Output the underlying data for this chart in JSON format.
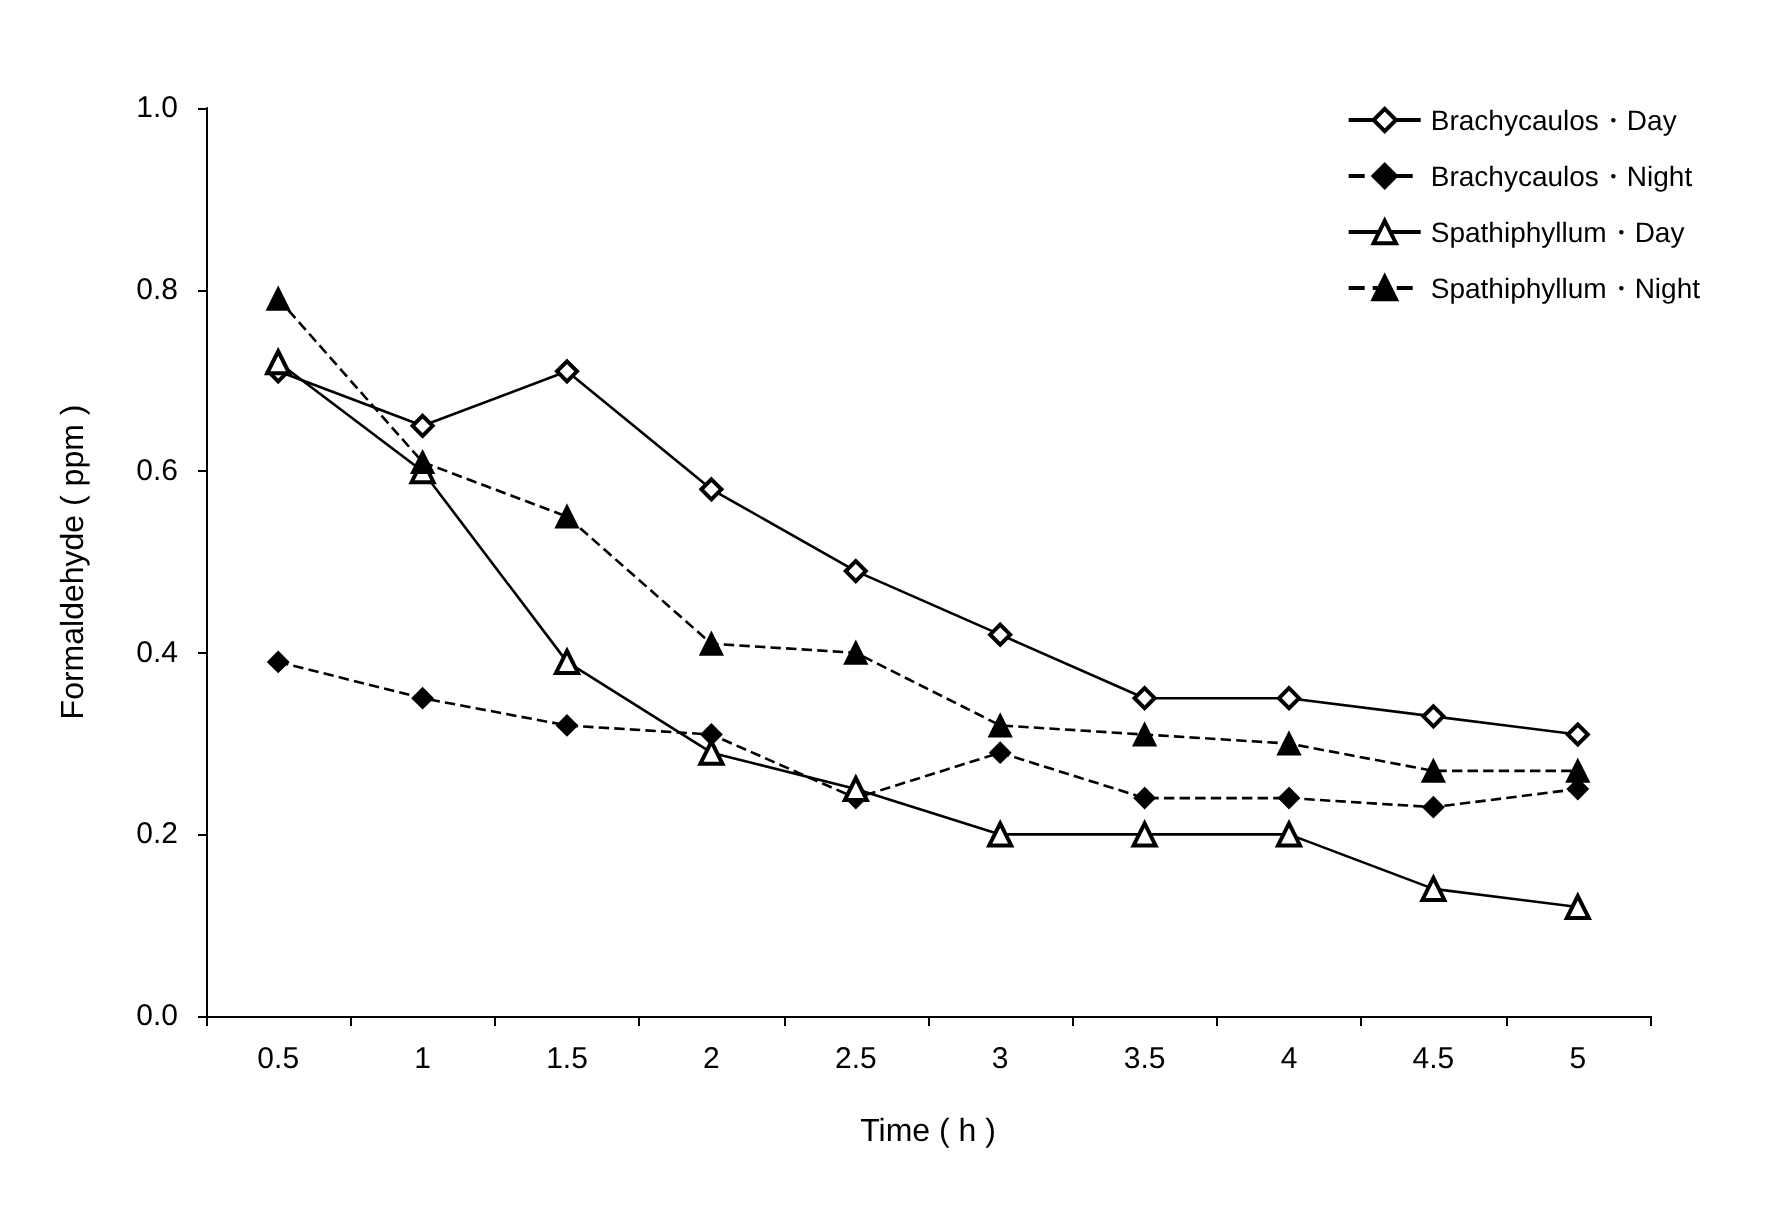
{
  "chart_data": {
    "type": "line",
    "xlabel": "Time ( h )",
    "ylabel": "Formaldehyde ( ppm )",
    "categories": [
      "0.5",
      "1",
      "1.5",
      "2",
      "2.5",
      "3",
      "3.5",
      "4",
      "4.5",
      "5"
    ],
    "ylim": [
      0,
      1
    ],
    "yticks": [
      {
        "value": 0,
        "label": "0.0"
      },
      {
        "value": 0.2,
        "label": "0.2"
      },
      {
        "value": 0.4,
        "label": "0.4"
      },
      {
        "value": 0.6,
        "label": "0.6"
      },
      {
        "value": 0.8,
        "label": "0.8"
      },
      {
        "value": 1,
        "label": "1.0"
      }
    ],
    "grid": false,
    "legend": "top right",
    "series": [
      {
        "name": "Brachycaulos・Day",
        "color": "#000000",
        "marker": "diamond",
        "line_style": "solid",
        "values": [
          0.71,
          0.65,
          0.71,
          0.58,
          0.49,
          0.42,
          0.35,
          0.35,
          0.33,
          0.31
        ]
      },
      {
        "name": "Brachycaulos・Night",
        "color": "#000000",
        "marker": "diamond",
        "line_style": "dashed",
        "values": [
          0.39,
          0.35,
          0.32,
          0.31,
          0.24,
          0.29,
          0.24,
          0.24,
          0.23,
          0.25
        ]
      },
      {
        "name": "Spathiphyllum・Day",
        "color": "#000000",
        "marker": "triangle",
        "line_style": "solid",
        "values": [
          0.72,
          0.6,
          0.39,
          0.29,
          0.25,
          0.2,
          0.2,
          0.2,
          0.14,
          0.12
        ]
      },
      {
        "name": "Spathiphyllum・Night",
        "color": "#000000",
        "marker": "triangle",
        "line_style": "dashed",
        "values": [
          0.79,
          0.61,
          0.55,
          0.41,
          0.4,
          0.32,
          0.31,
          0.3,
          0.27,
          0.27
        ]
      }
    ]
  }
}
